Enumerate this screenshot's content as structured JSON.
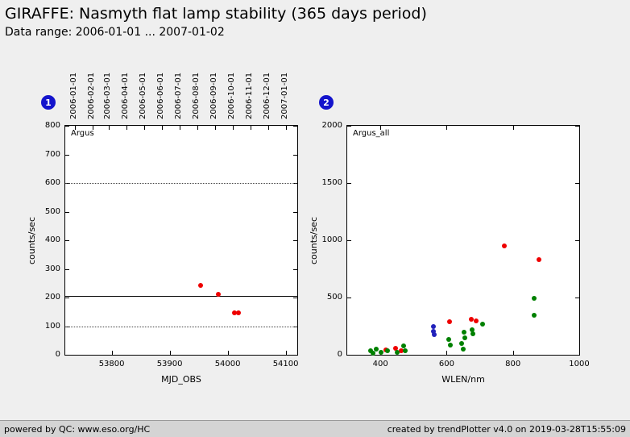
{
  "header": {
    "title": "GIRAFFE: Nasmyth flat lamp stability (365 days period)",
    "subtitle": "Data range: 2006-01-01 ... 2007-01-02"
  },
  "footer": {
    "left": "powered by QC: www.eso.org/HC",
    "right": "created by trendPlotter v4.0 on 2019-03-28T15:55:09"
  },
  "colors": {
    "page_background": "#efefef",
    "plot_background": "#ffffff",
    "footer_background": "#d4d4d4",
    "badge": "#1414cc",
    "red": "#ee0000",
    "green": "#008000",
    "blue": "#2222bb"
  },
  "chart_data": [
    {
      "type": "scatter",
      "badge": "1",
      "inner_label": "Argus",
      "xlabel": "MJD_OBS",
      "ylabel": "counts/sec",
      "xlim": [
        53720,
        54120
      ],
      "ylim": [
        0,
        800
      ],
      "x_ticks": [
        53800,
        53900,
        54000,
        54100
      ],
      "y_ticks": [
        0,
        100,
        200,
        300,
        400,
        500,
        600,
        700,
        800
      ],
      "grid": false,
      "legend": "none",
      "top_axis_dates": [
        {
          "label": "2006-01-01",
          "mjd": 53736
        },
        {
          "label": "2006-02-01",
          "mjd": 53767
        },
        {
          "label": "2006-03-01",
          "mjd": 53795
        },
        {
          "label": "2006-04-01",
          "mjd": 53826
        },
        {
          "label": "2006-05-01",
          "mjd": 53856
        },
        {
          "label": "2006-06-01",
          "mjd": 53887
        },
        {
          "label": "2006-07-01",
          "mjd": 53917
        },
        {
          "label": "2006-08-01",
          "mjd": 53948
        },
        {
          "label": "2006-09-01",
          "mjd": 53979
        },
        {
          "label": "2006-10-01",
          "mjd": 54009
        },
        {
          "label": "2006-11-01",
          "mjd": 54040
        },
        {
          "label": "2006-12-01",
          "mjd": 54070
        },
        {
          "label": "2007-01-01",
          "mjd": 54101
        }
      ],
      "hlines": [
        {
          "y": 600,
          "style": "dotted"
        },
        {
          "y": 205,
          "style": "solid"
        },
        {
          "y": 100,
          "style": "dotted"
        }
      ],
      "series": [
        {
          "name": "Argus",
          "color": "red",
          "points": [
            [
              53954,
              243
            ],
            [
              53984,
              212
            ],
            [
              54012,
              147
            ],
            [
              54018,
              146
            ]
          ]
        }
      ]
    },
    {
      "type": "scatter",
      "badge": "2",
      "inner_label": "Argus_all",
      "xlabel": "WLEN/nm",
      "ylabel": "counts/sec",
      "xlim": [
        300,
        1000
      ],
      "ylim": [
        0,
        2000
      ],
      "x_ticks": [
        400,
        600,
        800,
        1000
      ],
      "y_ticks": [
        0,
        500,
        1000,
        1500,
        2000
      ],
      "grid": false,
      "legend": "none",
      "hlines": [],
      "series": [
        {
          "name": "red",
          "color": "red",
          "points": [
            [
              417,
              40
            ],
            [
              446,
              55
            ],
            [
              463,
              35
            ],
            [
              609,
              290
            ],
            [
              674,
              310
            ],
            [
              689,
              295
            ],
            [
              774,
              950
            ],
            [
              878,
              830
            ]
          ]
        },
        {
          "name": "green",
          "color": "green",
          "points": [
            [
              370,
              35
            ],
            [
              378,
              15
            ],
            [
              388,
              50
            ],
            [
              402,
              20
            ],
            [
              422,
              35
            ],
            [
              451,
              20
            ],
            [
              470,
              75
            ],
            [
              475,
              35
            ],
            [
              606,
              135
            ],
            [
              611,
              85
            ],
            [
              645,
              100
            ],
            [
              650,
              50
            ],
            [
              652,
              195
            ],
            [
              655,
              150
            ],
            [
              677,
              220
            ],
            [
              679,
              185
            ],
            [
              708,
              270
            ],
            [
              864,
              490
            ],
            [
              864,
              345
            ]
          ]
        },
        {
          "name": "blue",
          "color": "blue",
          "points": [
            [
              560,
              245
            ],
            [
              560,
              205
            ],
            [
              563,
              175
            ]
          ]
        }
      ]
    }
  ]
}
